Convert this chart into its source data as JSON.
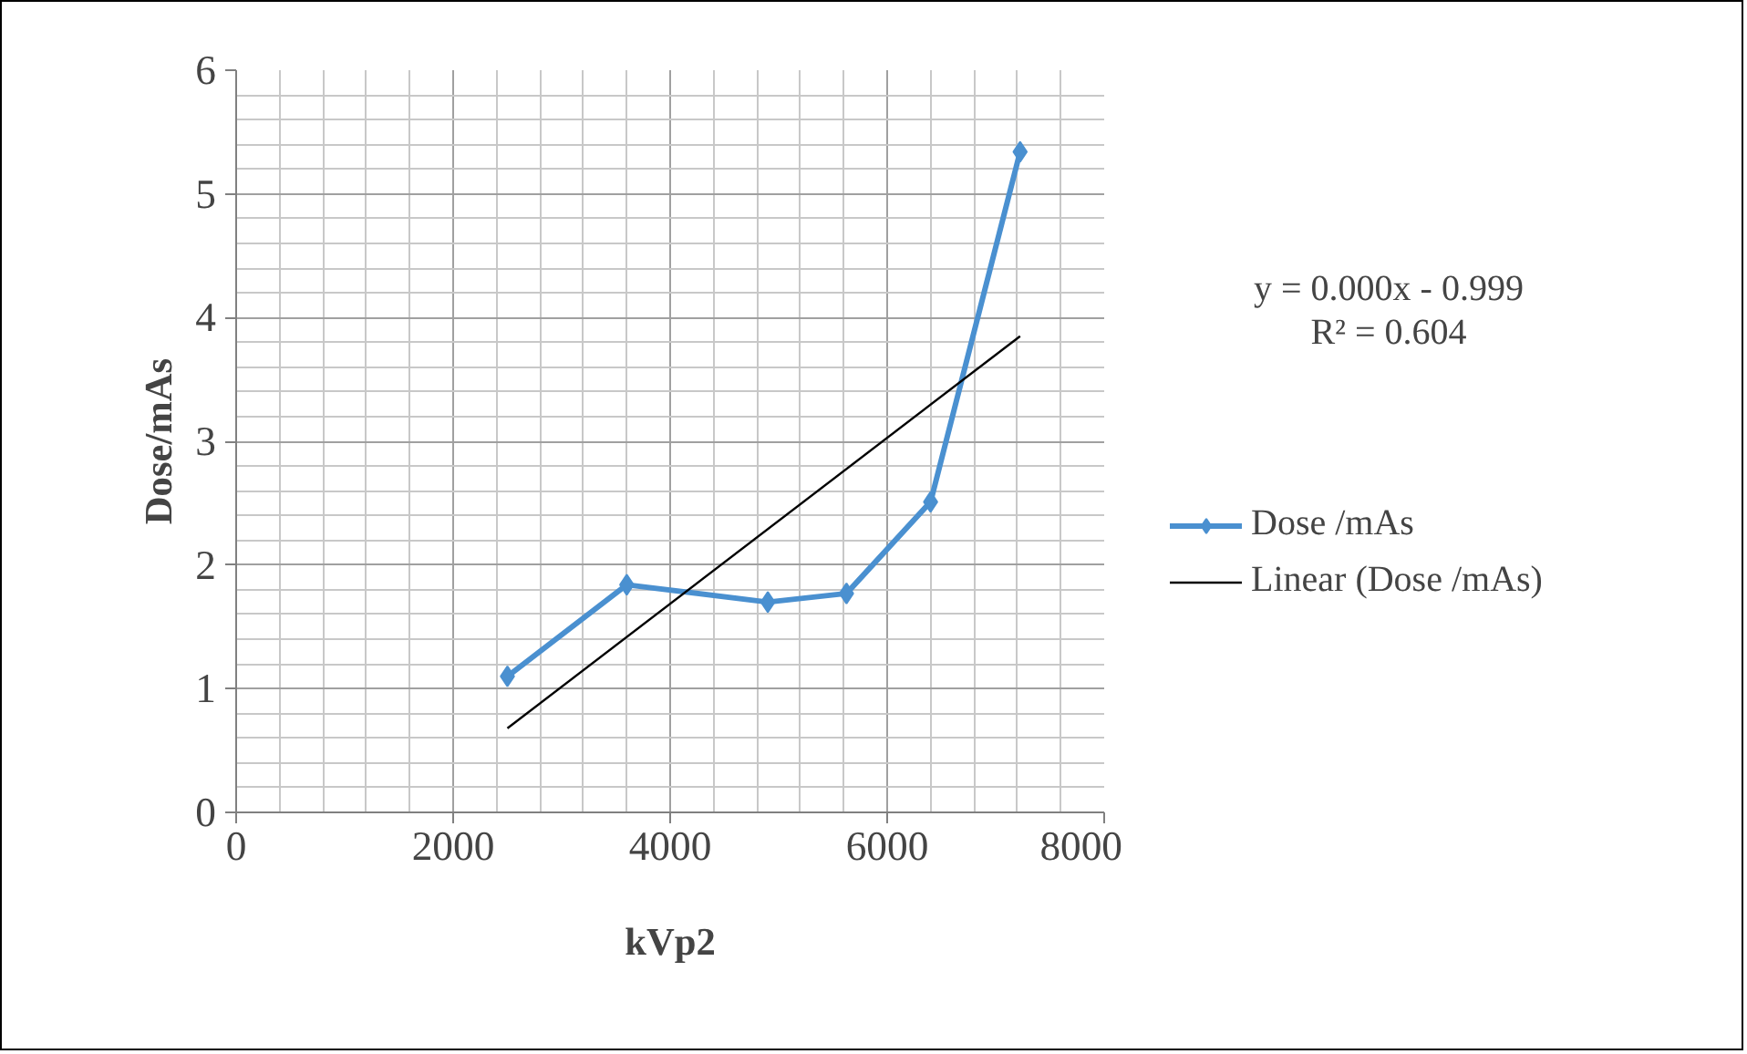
{
  "chart_data": {
    "type": "line",
    "xlabel": "kVp2",
    "ylabel": "Dose/mAs",
    "x": [
      2500,
      3600,
      4900,
      5625,
      6400,
      7225
    ],
    "series": [
      {
        "name": "Dose /mAs",
        "color": "#4a90d0",
        "values": [
          1.1,
          1.84,
          1.7,
          1.77,
          2.51,
          5.34
        ],
        "marker": "diamond"
      },
      {
        "name": "Linear (Dose /mAs)",
        "type": "line",
        "color": "#000000",
        "x": [
          2500,
          7225
        ],
        "values": [
          0.68,
          3.85
        ],
        "marker": "none"
      }
    ],
    "xlim": [
      0,
      8000
    ],
    "xticks": [
      0,
      2000,
      4000,
      6000,
      8000
    ],
    "ylim": [
      0,
      6
    ],
    "yticks": [
      0,
      1,
      2,
      3,
      4,
      5,
      6
    ],
    "grid": true,
    "legend": "right",
    "annotations": [
      "y = 0.000x - 0.999",
      "R² = 0.604"
    ]
  }
}
